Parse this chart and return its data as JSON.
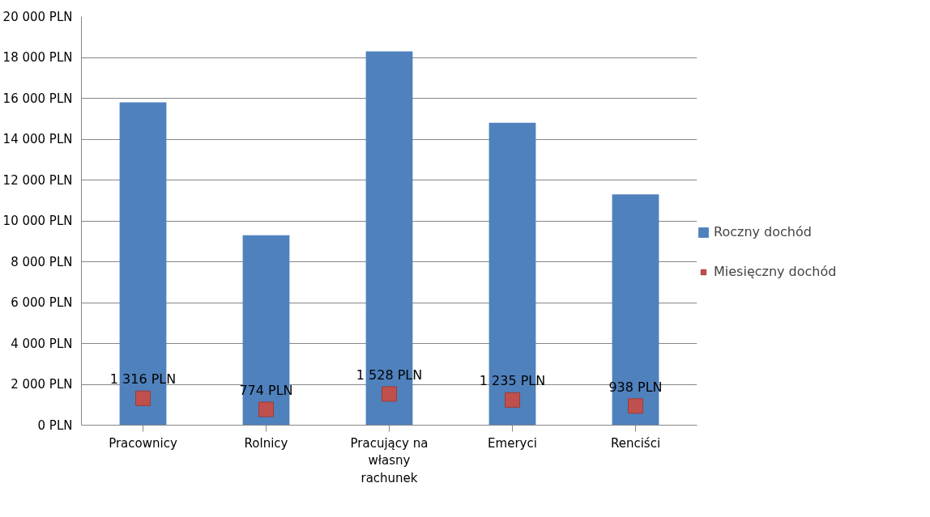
{
  "chart_data": {
    "type": "bar",
    "categories": [
      "Pracownicy",
      "Rolnicy",
      "Pracujący na własny rachunek",
      "Emeryci",
      "Renciści"
    ],
    "series": [
      {
        "name": "Roczny dochód",
        "color": "#4f81bd",
        "values": [
          15800,
          9300,
          18300,
          14800,
          11300
        ]
      },
      {
        "name": "Miesięczny dochód",
        "type": "scatter",
        "marker": "square",
        "color": "#c0504d",
        "values": [
          1316,
          774,
          1528,
          1235,
          938
        ],
        "value_labels": [
          "1 316 PLN",
          "774 PLN",
          "1 528 PLN",
          "1 235 PLN",
          "938 PLN"
        ]
      }
    ],
    "ylim": [
      0,
      20000
    ],
    "yticks": [
      {
        "value": 0,
        "label": "0 PLN"
      },
      {
        "value": 2000,
        "label": "2 000 PLN"
      },
      {
        "value": 4000,
        "label": "4 000 PLN"
      },
      {
        "value": 6000,
        "label": "6 000 PLN"
      },
      {
        "value": 8000,
        "label": "8 000 PLN"
      },
      {
        "value": 10000,
        "label": "10 000 PLN"
      },
      {
        "value": 12000,
        "label": "12 000 PLN"
      },
      {
        "value": 14000,
        "label": "14 000 PLN"
      },
      {
        "value": 16000,
        "label": "16 000 PLN"
      },
      {
        "value": 18000,
        "label": "18 000 PLN"
      },
      {
        "value": 20000,
        "label": "20 000 PLN"
      }
    ],
    "grid": "y",
    "legend": "right"
  }
}
